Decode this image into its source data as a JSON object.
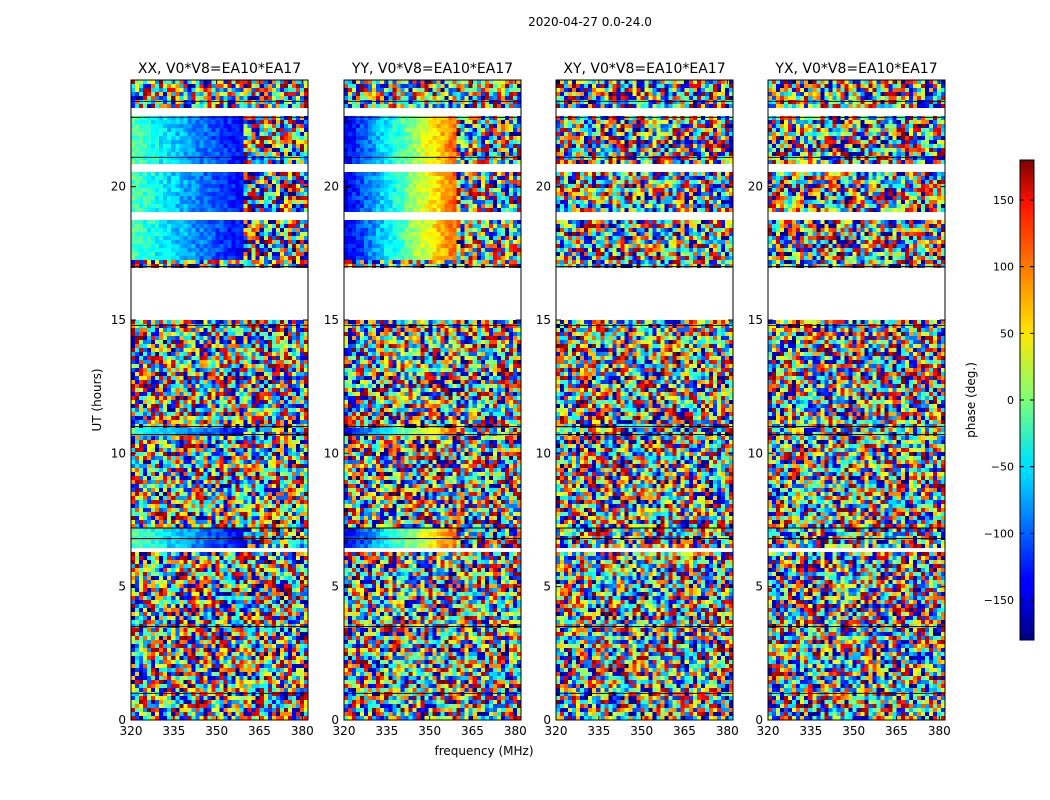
{
  "figure": {
    "suptitle": "2020-04-27 0.0-24.0"
  },
  "chart_data": {
    "type": "heatmap",
    "xlabel": "frequency (MHz)",
    "ylabel": "UT (hours)",
    "xlim": [
      320,
      382
    ],
    "ylim": [
      0,
      24
    ],
    "x_ticks": [
      320,
      335,
      350,
      365,
      380
    ],
    "y_ticks": [
      0,
      5,
      10,
      15,
      20
    ],
    "panels": [
      {
        "title": "XX, V0*V8=EA10*EA17",
        "pol": "XX"
      },
      {
        "title": "YY, V0*V8=EA10*EA17",
        "pol": "YY"
      },
      {
        "title": "XY, V0*V8=EA10*EA17",
        "pol": "XY"
      },
      {
        "title": "YX, V0*V8=EA10*EA17",
        "pol": "YX"
      }
    ],
    "colorbar": {
      "label": "phase (deg.)",
      "range": [
        -180,
        180
      ],
      "ticks": [
        -150,
        -100,
        -50,
        0,
        50,
        100,
        150
      ],
      "tick_labels": [
        "−150",
        "−100",
        "−50",
        "0",
        "50",
        "100",
        "150"
      ],
      "colormap": "jet"
    },
    "flagged_ut_ranges": [
      [
        15.0,
        17.0
      ],
      [
        18.7,
        19.1
      ],
      [
        20.5,
        20.9
      ],
      [
        6.3,
        6.5
      ],
      [
        22.7,
        22.9
      ]
    ]
  }
}
